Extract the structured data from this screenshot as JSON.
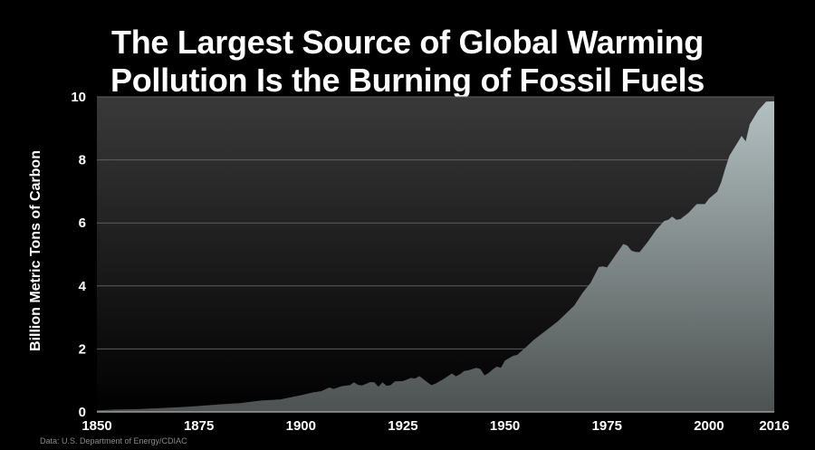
{
  "chart_data": {
    "type": "area",
    "title_lines": [
      "The Largest Source of Global Warming",
      "Pollution Is the Burning of Fossil Fuels"
    ],
    "ylabel": "Billion Metric Tons of Carbon",
    "xlabel": "",
    "xlim": [
      1850,
      2016
    ],
    "ylim": [
      0,
      10
    ],
    "x_ticks": [
      1850,
      1875,
      1900,
      1925,
      1950,
      1975,
      2000,
      2016
    ],
    "y_ticks": [
      0,
      2,
      4,
      6,
      8,
      10
    ],
    "grid": true,
    "legend": "none",
    "source": "Data: U.S. Department of Energy/CDIAC",
    "series": [
      {
        "x": [
          1850,
          1855,
          1860,
          1865,
          1870,
          1875,
          1880,
          1885,
          1890,
          1895,
          1900,
          1903,
          1905,
          1907,
          1908,
          1910,
          1912,
          1913,
          1914,
          1915,
          1917,
          1918,
          1919,
          1920,
          1921,
          1922,
          1923,
          1925,
          1927,
          1928,
          1929,
          1930,
          1931,
          1932,
          1933,
          1935,
          1937,
          1938,
          1939,
          1940,
          1941,
          1943,
          1944,
          1945,
          1946,
          1947,
          1948,
          1949,
          1950,
          1952,
          1953,
          1955,
          1957,
          1960,
          1963,
          1965,
          1967,
          1969,
          1971,
          1973,
          1974,
          1975,
          1977,
          1979,
          1980,
          1981,
          1982,
          1983,
          1985,
          1987,
          1989,
          1990,
          1991,
          1992,
          1993,
          1995,
          1997,
          1999,
          2000,
          2002,
          2003,
          2004,
          2005,
          2007,
          2008,
          2009,
          2010,
          2012,
          2014,
          2016
        ],
        "values": [
          0.05,
          0.08,
          0.09,
          0.12,
          0.15,
          0.19,
          0.24,
          0.28,
          0.36,
          0.4,
          0.53,
          0.62,
          0.66,
          0.78,
          0.73,
          0.82,
          0.85,
          0.94,
          0.86,
          0.84,
          0.95,
          0.94,
          0.8,
          0.94,
          0.83,
          0.85,
          0.97,
          0.98,
          1.08,
          1.06,
          1.14,
          1.04,
          0.94,
          0.85,
          0.9,
          1.05,
          1.22,
          1.13,
          1.2,
          1.3,
          1.32,
          1.4,
          1.36,
          1.16,
          1.24,
          1.35,
          1.44,
          1.4,
          1.63,
          1.78,
          1.81,
          2.04,
          2.28,
          2.58,
          2.88,
          3.13,
          3.38,
          3.78,
          4.1,
          4.6,
          4.62,
          4.59,
          4.96,
          5.33,
          5.28,
          5.12,
          5.08,
          5.07,
          5.4,
          5.77,
          6.06,
          6.1,
          6.2,
          6.1,
          6.12,
          6.32,
          6.6,
          6.6,
          6.77,
          6.99,
          7.29,
          7.73,
          8.13,
          8.55,
          8.76,
          8.59,
          9.13,
          9.56,
          9.85,
          9.86
        ]
      }
    ]
  }
}
